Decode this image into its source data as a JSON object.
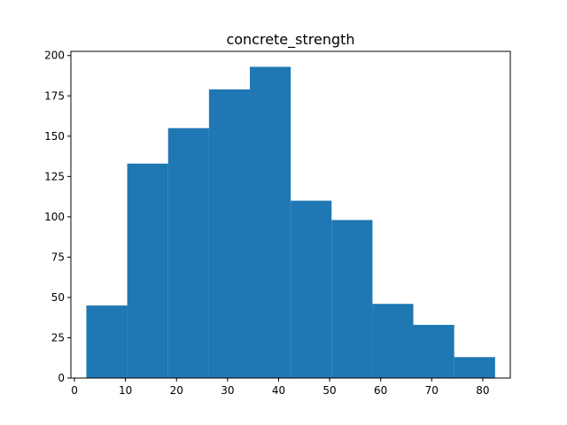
{
  "chart_data": {
    "type": "bar",
    "title": "concrete_strength",
    "xlabel": "",
    "ylabel": "",
    "bin_edges": [
      2.33,
      10.34,
      18.35,
      26.36,
      34.37,
      42.38,
      50.38,
      58.39,
      66.4,
      74.41,
      82.42
    ],
    "values": [
      45,
      133,
      155,
      179,
      193,
      110,
      98,
      46,
      33,
      13
    ],
    "xlim": [
      -0.7,
      85.4
    ],
    "ylim": [
      0,
      202.6
    ],
    "x_ticks": [
      0,
      10,
      20,
      30,
      40,
      50,
      60,
      70,
      80
    ],
    "y_ticks": [
      0,
      25,
      50,
      75,
      100,
      125,
      150,
      175,
      200
    ],
    "bar_color": "#1f77b4",
    "grid": false
  }
}
